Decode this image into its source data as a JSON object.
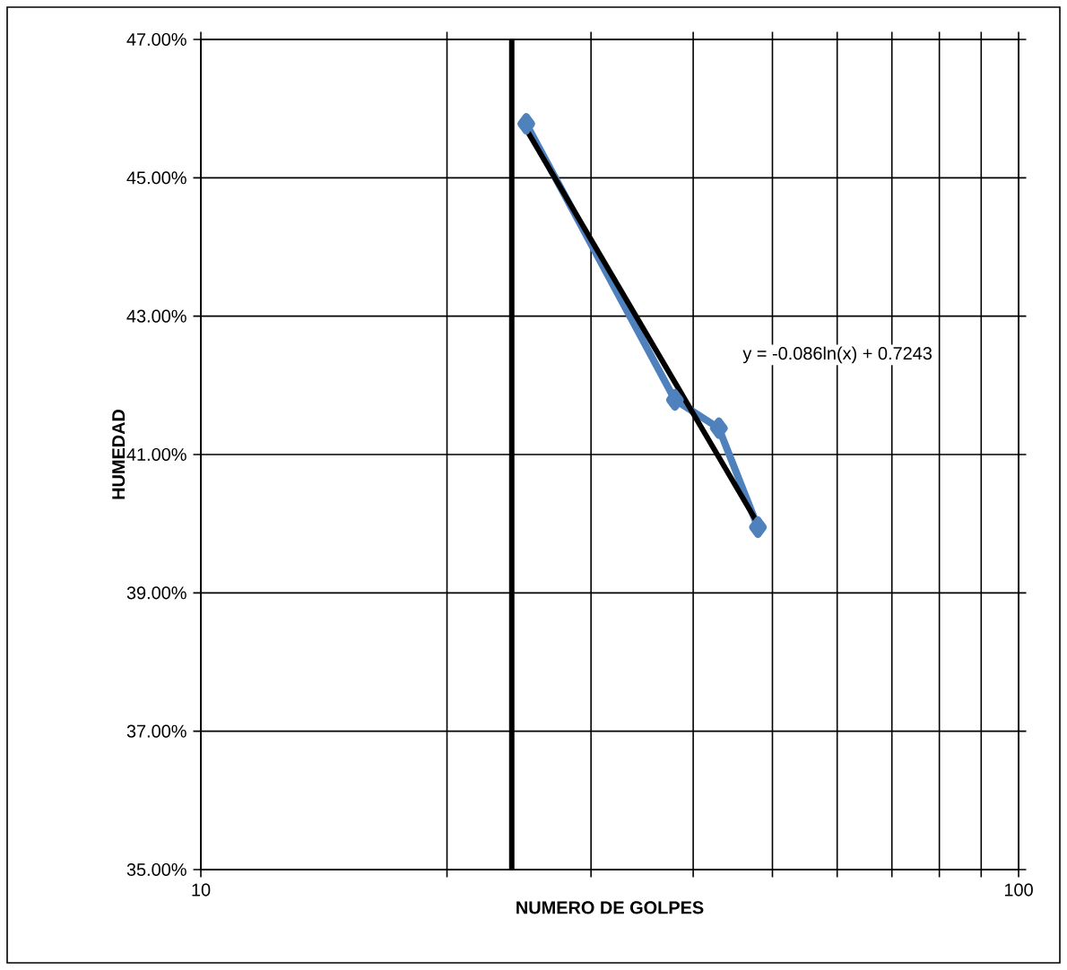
{
  "chart_data": {
    "type": "line",
    "xlabel": "NUMERO DE GOLPES",
    "ylabel": "HUMEDAD",
    "log": "x",
    "xlim": [
      10,
      100
    ],
    "xticks": [
      10,
      {
        "value": 20,
        "label": null
      },
      {
        "value": 30,
        "label": null
      },
      {
        "value": 40,
        "label": null
      },
      {
        "value": 50,
        "label": null
      },
      {
        "value": 60,
        "label": null
      },
      {
        "value": 70,
        "label": null
      },
      {
        "value": 80,
        "label": null
      },
      {
        "value": 90,
        "label": null
      },
      100
    ],
    "ylim": [
      35,
      47
    ],
    "yticks": [
      {
        "value": 35,
        "label": "35.00%"
      },
      {
        "value": 37,
        "label": "37.00%"
      },
      {
        "value": 39,
        "label": "39.00%"
      },
      {
        "value": 41,
        "label": "41.00%"
      },
      {
        "value": 43,
        "label": "43.00%"
      },
      {
        "value": 45,
        "label": "45.00%"
      },
      {
        "value": 47,
        "label": "47.00%"
      }
    ],
    "grid": true,
    "series": [
      {
        "color": "#4f81bd",
        "marker": "diamond",
        "x": [
          25,
          38,
          43,
          48
        ],
        "values": [
          45.78,
          41.79,
          41.38,
          39.95
        ]
      },
      {
        "type": "line",
        "color": "#000000",
        "marker": "none",
        "x": [
          25,
          48
        ],
        "values": [
          45.7,
          40.0
        ]
      }
    ],
    "ref_lines": [
      {
        "axis": "x",
        "value": 24,
        "color": "#000000"
      }
    ],
    "annotations": [
      "y = -0.086ln(x) + 0.7243"
    ]
  }
}
